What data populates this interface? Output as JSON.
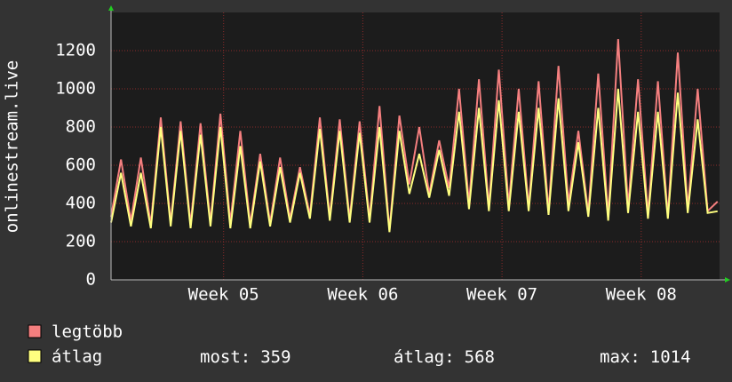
{
  "chart_data": {
    "type": "line",
    "y_label": "onlinestream.live",
    "x": [
      0,
      0.5,
      1,
      1.5,
      2,
      2.5,
      3,
      3.5,
      4,
      4.5,
      5,
      5.5,
      6,
      6.5,
      7,
      7.5,
      8,
      8.5,
      9,
      9.5,
      10,
      10.5,
      11,
      11.5,
      12,
      12.5,
      13,
      13.5,
      14,
      14.5,
      15,
      15.5,
      16,
      16.5,
      17,
      17.5,
      18,
      18.5,
      19,
      19.5,
      20,
      20.5,
      21,
      21.5,
      22,
      22.5,
      23,
      23.5,
      24,
      24.5,
      25,
      25.5,
      26,
      26.5,
      27,
      27.5,
      28,
      28.5,
      29,
      29.5,
      30,
      30.5
    ],
    "xlim": [
      0,
      30.6
    ],
    "xticks": [
      {
        "value": 5.66,
        "label": "Week 05"
      },
      {
        "value": 12.66,
        "label": "Week 06"
      },
      {
        "value": 19.66,
        "label": "Week 07"
      },
      {
        "value": 26.66,
        "label": "Week 08"
      }
    ],
    "ylim": [
      0,
      1400
    ],
    "yticks": [
      0,
      200,
      400,
      600,
      800,
      1000,
      1200
    ],
    "grid": true,
    "series": [
      {
        "name": "legtöbb",
        "color": "#f47f7f",
        "values": [
          330,
          630,
          310,
          640,
          290,
          850,
          300,
          830,
          290,
          820,
          300,
          870,
          300,
          780,
          290,
          660,
          300,
          640,
          320,
          590,
          340,
          850,
          330,
          840,
          320,
          830,
          320,
          910,
          260,
          860,
          500,
          800,
          450,
          730,
          480,
          1000,
          400,
          1050,
          380,
          1100,
          390,
          1000,
          380,
          1040,
          360,
          1120,
          400,
          780,
          350,
          1080,
          330,
          1260,
          380,
          1050,
          340,
          1040,
          330,
          1190,
          370,
          1000,
          360,
          410
        ]
      },
      {
        "name": "átlag",
        "color": "#ffff80",
        "values": [
          300,
          560,
          280,
          560,
          270,
          800,
          280,
          780,
          270,
          760,
          280,
          800,
          270,
          700,
          270,
          620,
          280,
          590,
          300,
          560,
          320,
          790,
          310,
          780,
          300,
          770,
          300,
          800,
          250,
          780,
          450,
          660,
          430,
          680,
          440,
          880,
          370,
          900,
          360,
          940,
          360,
          880,
          360,
          900,
          340,
          950,
          360,
          720,
          330,
          900,
          310,
          1000,
          350,
          880,
          320,
          880,
          320,
          980,
          350,
          840,
          350,
          359
        ]
      }
    ],
    "stats": [
      {
        "label": "most:",
        "value": 359
      },
      {
        "label": "átlag:",
        "value": 568
      },
      {
        "label": "max:",
        "value": 1014
      }
    ]
  }
}
